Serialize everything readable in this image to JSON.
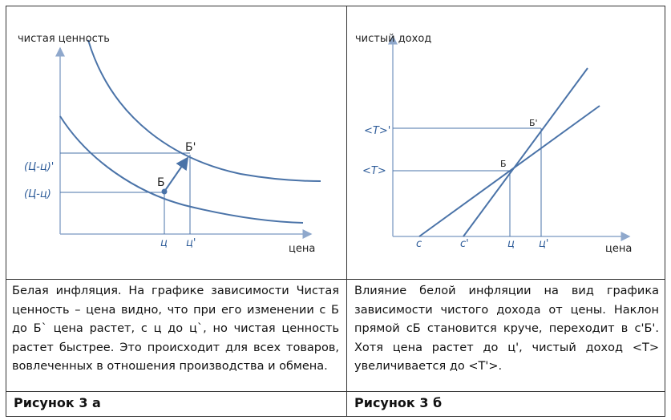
{
  "panels": [
    {
      "y_axis_label": "чистая ценность",
      "x_axis_label": "цена",
      "y_labels": [
        "(Ц-ц)'",
        "(Ц-ц)"
      ],
      "x_labels": [
        "ц",
        "ц'"
      ],
      "point_labels": [
        "Б",
        "Б'"
      ],
      "description": "Белая инфляция. На графике зависимости Чистая ценность – цена видно, что при его изменении с Б до Б` цена растет, с ц до ц`, но чистая ценность растет быстрее. Это происходит для всех товаров, вовлеченных в отношения производства и обмена.",
      "caption": "Рисунок 3 а"
    },
    {
      "y_axis_label": "чистый доход",
      "x_axis_label": "цена",
      "y_labels": [
        "<T>'",
        "<T>"
      ],
      "x_labels": [
        "c",
        "c'",
        "ц",
        "ц'"
      ],
      "point_labels": [
        "Б",
        "Б'"
      ],
      "description": "Влияние белой инфляции на вид графика зависимости чистого дохода от цены. Наклон прямой cБ становится круче, переходит в c'Б'. Хотя цена растет до ц', чистый доход <T> увеличивается до <T'>.",
      "caption": "Рисунок 3 б"
    }
  ]
}
